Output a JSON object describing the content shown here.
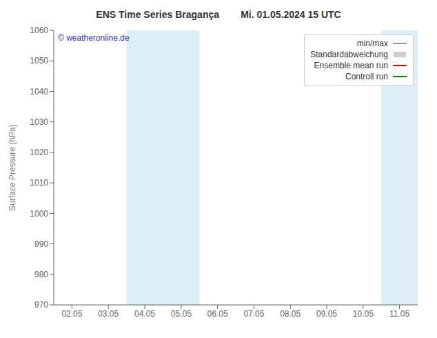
{
  "chart_data": {
    "type": "line",
    "title": "ENS Time Series Bragança        Mi. 01.05.2024 15 UTC",
    "y_label": "Surface Pressure (hPa)",
    "categories": [
      "02.05",
      "03.05",
      "04.05",
      "05.05",
      "06.05",
      "07.05",
      "08.05",
      "09.05",
      "10.05",
      "11.05"
    ],
    "xlim": [
      -0.5,
      9.5
    ],
    "ylim": [
      970,
      1060
    ],
    "yticks": [
      970,
      980,
      990,
      1000,
      1010,
      1020,
      1030,
      1040,
      1050,
      1060
    ],
    "grid": false,
    "legend": "upper right",
    "bands": [
      {
        "start": 1.5,
        "end": 3.5,
        "color": "#ddeef8"
      },
      {
        "start": 8.5,
        "end": 9.0,
        "color": "#ddeef8"
      },
      {
        "start": 9.0,
        "end": 9.5,
        "color": "#ddeef8"
      }
    ],
    "annotations": [
      {
        "text": "© weatheronline.de",
        "color": "#3333cc"
      }
    ],
    "series": [
      {
        "name": "min/max",
        "type": "line",
        "color": "#999999",
        "values": [
          null,
          null,
          null,
          null,
          null,
          null,
          null,
          null,
          null,
          null
        ]
      },
      {
        "name": "Standardabweichung",
        "type": "bar",
        "color": "#cccccc",
        "values": [
          null,
          null,
          null,
          null,
          null,
          null,
          null,
          null,
          null,
          null
        ]
      },
      {
        "name": "Ensemble mean run",
        "type": "line",
        "color": "#dd0000",
        "values": [
          null,
          null,
          null,
          null,
          null,
          null,
          null,
          null,
          null,
          null
        ]
      },
      {
        "name": "Controll run",
        "type": "line",
        "color": "#008800",
        "values": [
          null,
          null,
          null,
          null,
          null,
          null,
          null,
          null,
          null,
          null
        ]
      }
    ]
  }
}
